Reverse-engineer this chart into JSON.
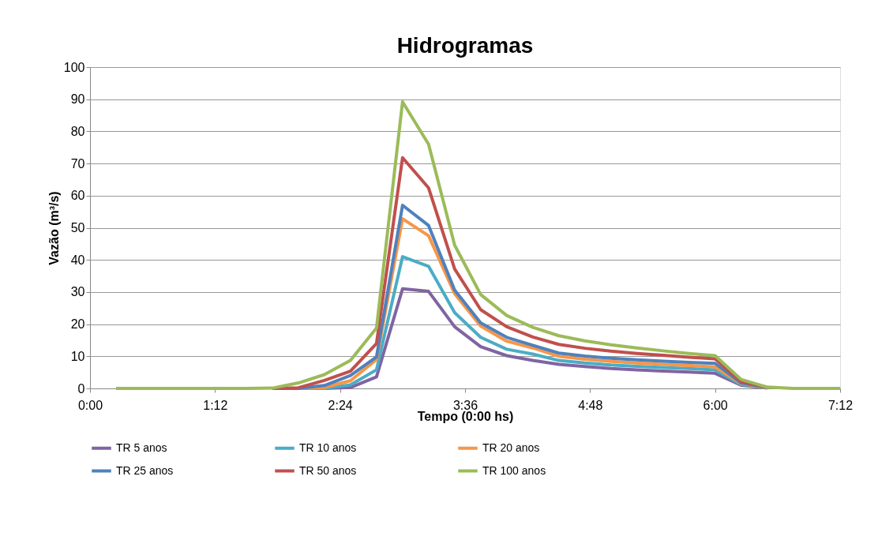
{
  "chart_data": {
    "type": "line",
    "title": "Hidrogramas",
    "xlabel": "Tempo (0:00 hs)",
    "ylabel": "Vazão (m³/s)",
    "x": [
      0.25,
      0.5,
      0.75,
      1.0,
      1.25,
      1.5,
      1.75,
      2.0,
      2.25,
      2.5,
      2.75,
      3.0,
      3.25,
      3.5,
      3.75,
      4.0,
      4.25,
      4.5,
      4.75,
      5.0,
      5.25,
      5.5,
      5.75,
      6.0,
      6.25,
      6.5,
      6.75,
      7.0,
      7.2
    ],
    "series": [
      {
        "name": "TR 5 anos",
        "color": "#8064a2",
        "values": [
          null,
          null,
          null,
          null,
          null,
          null,
          0,
          0,
          0,
          0.3,
          3.6,
          31,
          30.2,
          19.2,
          13,
          10.2,
          8.7,
          7.5,
          6.8,
          6.2,
          5.8,
          5.4,
          5.1,
          4.7,
          1.0,
          0.1,
          null,
          null,
          null
        ]
      },
      {
        "name": "TR 10 anos",
        "color": "#4bacc6",
        "values": [
          null,
          null,
          null,
          null,
          null,
          null,
          0,
          0,
          0,
          1.1,
          5.8,
          41,
          38,
          23.6,
          15.9,
          12.2,
          10.7,
          8.7,
          7.9,
          7.3,
          6.9,
          6.5,
          6.2,
          5.8,
          1.2,
          0.2,
          null,
          null,
          null
        ]
      },
      {
        "name": "TR 20 anos",
        "color": "#f79646",
        "values": [
          null,
          null,
          null,
          null,
          null,
          null,
          0,
          0,
          0.3,
          2.4,
          9,
          52.8,
          47.5,
          29.5,
          19.4,
          14.7,
          12.6,
          10,
          9.1,
          8.4,
          7.9,
          7.5,
          7.1,
          6.7,
          1.5,
          0.2,
          null,
          null,
          null
        ]
      },
      {
        "name": "TR 25 anos",
        "color": "#4f81bd",
        "values": [
          null,
          null,
          null,
          null,
          null,
          null,
          0,
          0,
          0.9,
          4,
          9.8,
          57,
          50.7,
          30.6,
          20.4,
          15.9,
          13.4,
          11,
          10.1,
          9.4,
          8.9,
          8.5,
          8.1,
          7.8,
          1.7,
          0.3,
          null,
          null,
          null
        ]
      },
      {
        "name": "TR 50 anos",
        "color": "#c0504d",
        "values": [
          null,
          null,
          null,
          null,
          null,
          null,
          0,
          0.2,
          2.5,
          5.4,
          14,
          71.8,
          62.4,
          37.2,
          24.5,
          19.2,
          16,
          13.7,
          12.5,
          11.6,
          10.9,
          10.3,
          9.7,
          9.2,
          2.1,
          0.4,
          null,
          null,
          null
        ]
      },
      {
        "name": "TR 100 anos",
        "color": "#9bbb59",
        "values": [
          0,
          0,
          0,
          0,
          0,
          0,
          0.1,
          1.7,
          4.3,
          8.7,
          18.8,
          89.2,
          76,
          44.6,
          29.2,
          22.7,
          19,
          16.4,
          14.8,
          13.6,
          12.6,
          11.7,
          10.9,
          10.2,
          2.8,
          0.4,
          0,
          0,
          0
        ]
      }
    ],
    "xlim": [
      0,
      7.2
    ],
    "xticks": [
      {
        "value": 0,
        "label": "0:00"
      },
      {
        "value": 1.2,
        "label": "1:12"
      },
      {
        "value": 2.4,
        "label": "2:24"
      },
      {
        "value": 3.6,
        "label": "3:36"
      },
      {
        "value": 4.8,
        "label": "4:48"
      },
      {
        "value": 6.0,
        "label": "6:00"
      },
      {
        "value": 7.2,
        "label": "7:12"
      }
    ],
    "ylim": [
      0,
      100
    ],
    "yticks": [
      0,
      10,
      20,
      30,
      40,
      50,
      60,
      70,
      80,
      90,
      100
    ],
    "grid": "y",
    "legend": "bottom",
    "marker": "none",
    "line_style": "solid"
  }
}
